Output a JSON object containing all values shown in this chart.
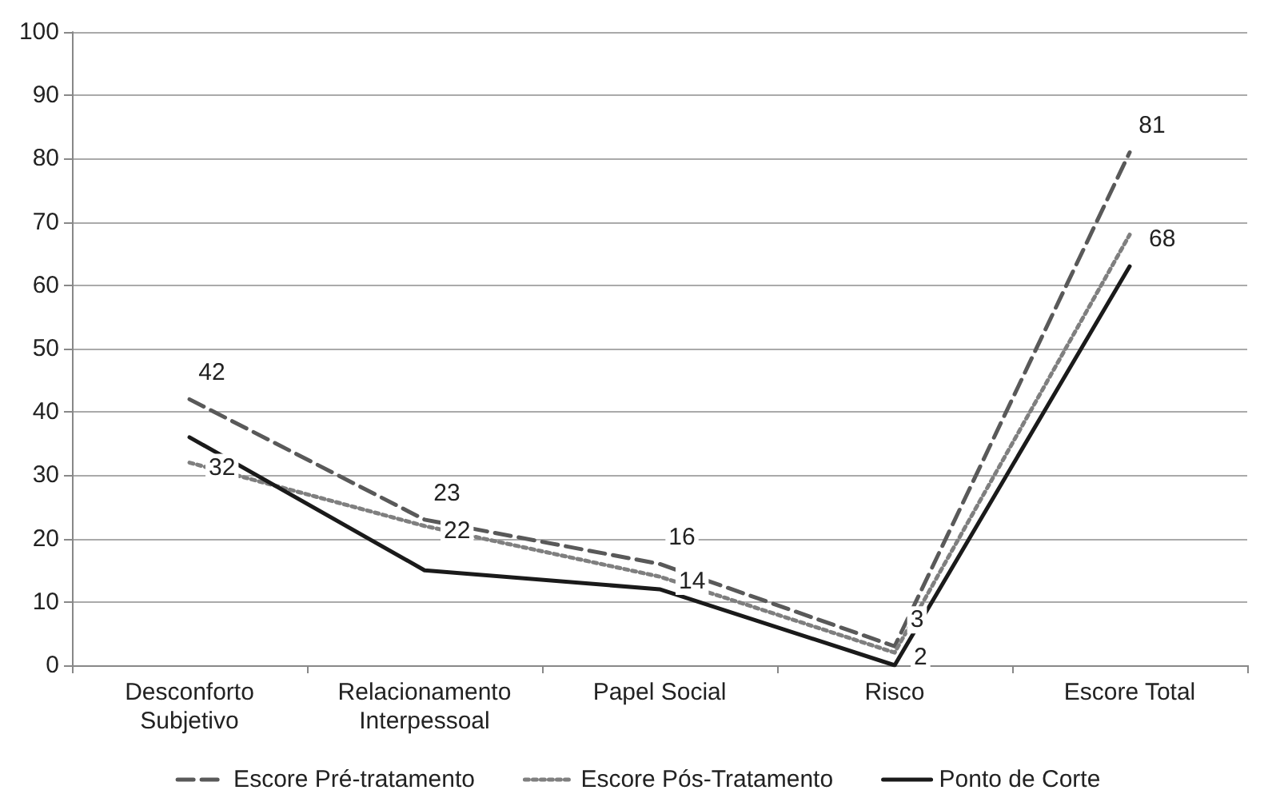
{
  "chart_data": {
    "type": "line",
    "categories": [
      "Desconforto\nSubjetivo",
      "Relacionamento\nInterpessoal",
      "Papel Social",
      "Risco",
      "Escore Total"
    ],
    "series": [
      {
        "name": "Escore Pré-tratamento",
        "color": "#595959",
        "line_style": "dashed",
        "values": [
          42,
          23,
          16,
          3,
          81
        ],
        "value_labels": [
          "42",
          "23",
          "16",
          "3",
          "81"
        ]
      },
      {
        "name": "Escore Pós-Tratamento",
        "color": "#7f7f7f",
        "line_style": "dotted",
        "values": [
          32,
          22,
          14,
          2,
          68
        ],
        "value_labels": [
          "32",
          "22",
          "14",
          "2",
          "68"
        ]
      },
      {
        "name": "Ponto de Corte",
        "color": "#1a1a1a",
        "line_style": "solid",
        "values": [
          36,
          15,
          12,
          0,
          63
        ]
      }
    ],
    "ylim": [
      0,
      100
    ],
    "yticks": [
      0,
      10,
      20,
      30,
      40,
      50,
      60,
      70,
      80,
      90,
      100
    ],
    "grid": "y",
    "legend": "bottom",
    "marker": "none"
  }
}
